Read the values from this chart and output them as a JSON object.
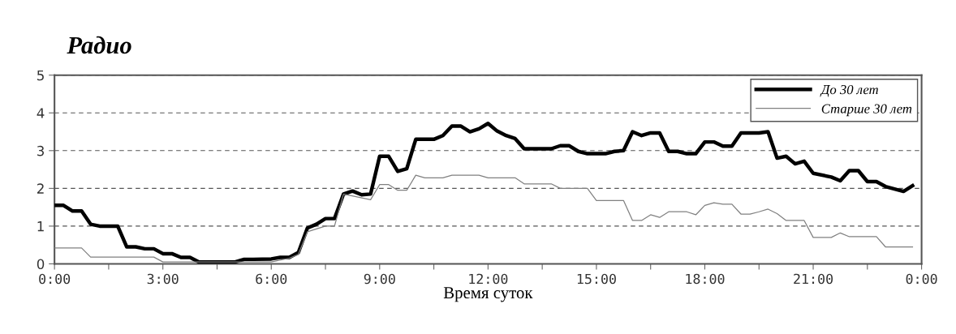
{
  "chart_data": {
    "type": "line",
    "title": "Радио",
    "xlabel": "Время суток",
    "xlim": [
      0,
      24
    ],
    "ylim": [
      0,
      5
    ],
    "xticks": [
      {
        "value": 0,
        "label": "0:00"
      },
      {
        "value": 1.5,
        "label": null
      },
      {
        "value": 3,
        "label": "3:00"
      },
      {
        "value": 4.5,
        "label": null
      },
      {
        "value": 6,
        "label": "6:00"
      },
      {
        "value": 7.5,
        "label": null
      },
      {
        "value": 9,
        "label": "9:00"
      },
      {
        "value": 10.5,
        "label": null
      },
      {
        "value": 12,
        "label": "12:00"
      },
      {
        "value": 13.5,
        "label": null
      },
      {
        "value": 15,
        "label": "15:00"
      },
      {
        "value": 16.5,
        "label": null
      },
      {
        "value": 18,
        "label": "18:00"
      },
      {
        "value": 19.5,
        "label": null
      },
      {
        "value": 21,
        "label": "21:00"
      },
      {
        "value": 22.5,
        "label": null
      },
      {
        "value": 24,
        "label": "0:00"
      }
    ],
    "yticks": [
      0,
      1,
      2,
      3,
      4,
      5
    ],
    "grid": "y",
    "legend": "top right",
    "marker": "none",
    "line_style": "solid",
    "series": [
      {
        "name": "До 30 лет",
        "color": "#000000",
        "x": [
          0,
          0.25,
          0.5,
          0.75,
          1.0,
          1.25,
          1.75,
          2.0,
          2.25,
          2.5,
          2.75,
          3.0,
          3.25,
          3.5,
          3.75,
          4.0,
          4.5,
          5.0,
          5.25,
          5.5,
          6.0,
          6.25,
          6.5,
          6.75,
          7.0,
          7.25,
          7.5,
          7.75,
          8.0,
          8.25,
          8.5,
          8.75,
          9.0,
          9.25,
          9.5,
          9.75,
          10.0,
          10.25,
          10.5,
          10.75,
          11.0,
          11.25,
          11.5,
          11.75,
          12.0,
          12.25,
          12.5,
          12.75,
          13.0,
          13.5,
          13.75,
          14.0,
          14.25,
          14.5,
          14.75,
          15.0,
          15.25,
          15.5,
          15.75,
          16.0,
          16.25,
          16.5,
          16.75,
          17.0,
          17.25,
          17.5,
          17.75,
          18.0,
          18.25,
          18.5,
          18.75,
          19.0,
          19.5,
          19.75,
          20.0,
          20.25,
          20.5,
          20.75,
          21.0,
          21.5,
          21.75,
          22.0,
          22.25,
          22.5,
          22.75,
          23.0,
          23.5,
          23.75
        ],
        "values": [
          1.55,
          1.55,
          1.4,
          1.4,
          1.05,
          1.0,
          1.0,
          0.45,
          0.45,
          0.4,
          0.4,
          0.27,
          0.27,
          0.17,
          0.17,
          0.05,
          0.05,
          0.05,
          0.12,
          0.12,
          0.13,
          0.17,
          0.17,
          0.3,
          0.95,
          1.05,
          1.2,
          1.2,
          1.85,
          1.93,
          1.83,
          1.85,
          2.85,
          2.85,
          2.45,
          2.52,
          3.3,
          3.3,
          3.3,
          3.4,
          3.65,
          3.65,
          3.5,
          3.58,
          3.72,
          3.52,
          3.4,
          3.32,
          3.05,
          3.05,
          3.05,
          3.13,
          3.13,
          2.98,
          2.92,
          2.92,
          2.92,
          2.98,
          3.0,
          3.5,
          3.4,
          3.47,
          3.47,
          2.98,
          2.98,
          2.92,
          2.92,
          3.23,
          3.23,
          3.12,
          3.12,
          3.47,
          3.47,
          3.5,
          2.8,
          2.85,
          2.65,
          2.72,
          2.4,
          2.3,
          2.2,
          2.47,
          2.47,
          2.18,
          2.18,
          2.05,
          1.92,
          2.07
        ]
      },
      {
        "name": "Старше 30 лет",
        "color": "#808080",
        "x": [
          0,
          0.75,
          1.0,
          2.75,
          3.0,
          6.0,
          6.5,
          6.75,
          7.0,
          7.5,
          7.75,
          8.0,
          8.75,
          9.0,
          9.25,
          9.5,
          9.75,
          10.0,
          10.25,
          10.75,
          11.0,
          11.75,
          12.0,
          12.75,
          13.0,
          13.75,
          14.0,
          14.75,
          15.0,
          15.75,
          16.0,
          16.25,
          16.5,
          16.75,
          17.0,
          17.5,
          17.75,
          18.0,
          18.25,
          18.5,
          18.75,
          19.0,
          19.25,
          19.5,
          19.75,
          20.0,
          20.25,
          20.75,
          21.0,
          21.5,
          21.75,
          22.0,
          22.75,
          23.0,
          23.75
        ],
        "values": [
          0.42,
          0.42,
          0.18,
          0.18,
          0.05,
          0.05,
          0.15,
          0.25,
          0.85,
          1.0,
          1.0,
          1.85,
          1.7,
          2.1,
          2.1,
          1.95,
          1.95,
          2.35,
          2.28,
          2.28,
          2.35,
          2.35,
          2.28,
          2.28,
          2.12,
          2.12,
          2.0,
          2.0,
          1.68,
          1.68,
          1.15,
          1.15,
          1.3,
          1.23,
          1.38,
          1.38,
          1.3,
          1.55,
          1.62,
          1.58,
          1.58,
          1.32,
          1.32,
          1.38,
          1.45,
          1.33,
          1.15,
          1.15,
          0.7,
          0.7,
          0.82,
          0.72,
          0.72,
          0.45,
          0.45
        ]
      }
    ]
  }
}
